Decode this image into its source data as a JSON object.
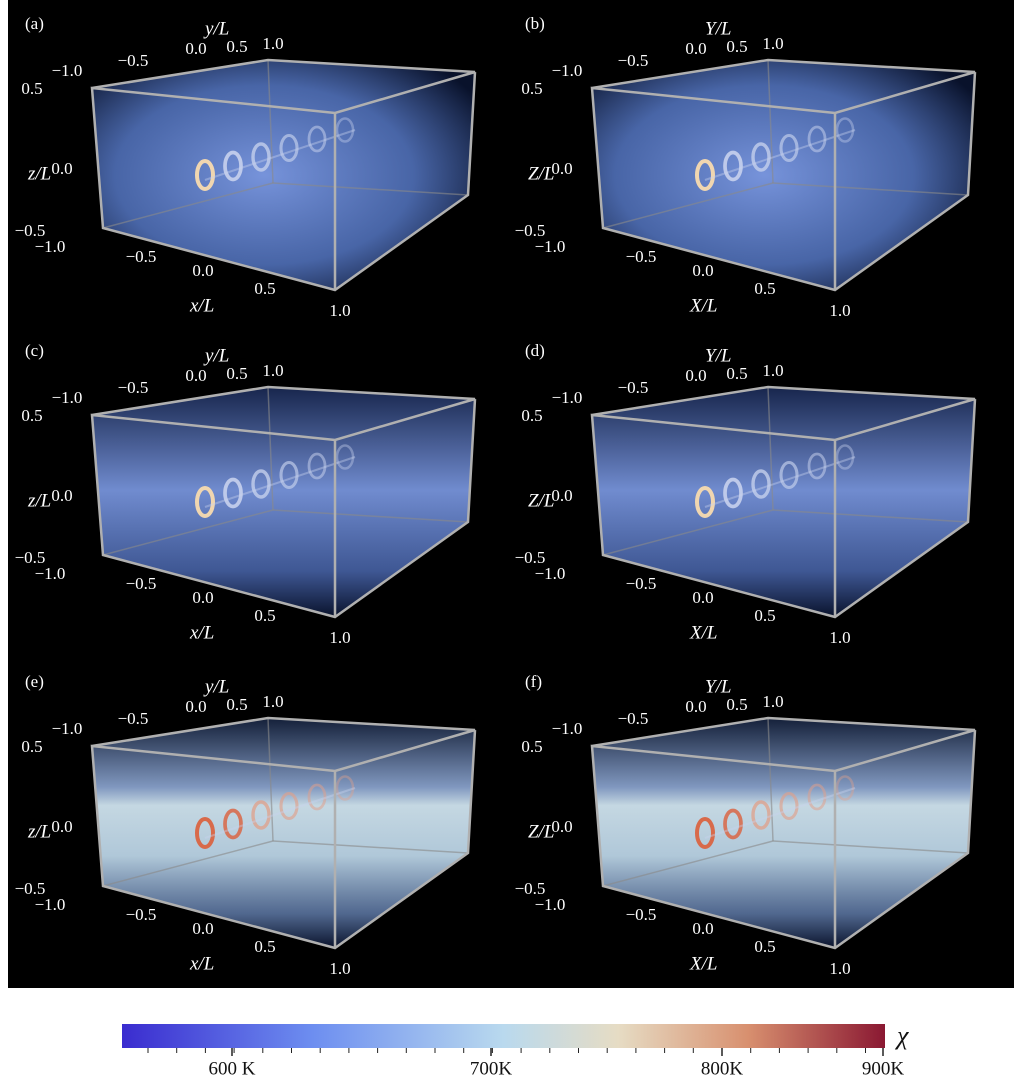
{
  "figure": {
    "panels": [
      {
        "label": "(a)",
        "x_axis_label": "x/L",
        "y_axis_label": "y/L",
        "z_axis_label": "z/L",
        "x_ticks": [
          "−1.0",
          "−0.5",
          "0.0",
          "0.5",
          "1.0"
        ],
        "y_ticks": [
          "−1.0",
          "−0.5",
          "0.0",
          "0.5",
          "1.0"
        ],
        "z_ticks": [
          "0.5",
          "0.0",
          "−0.5"
        ]
      },
      {
        "label": "(b)",
        "x_axis_label": "X/L",
        "y_axis_label": "Y/L",
        "z_axis_label": "Z/L",
        "x_ticks": [
          "−1.0",
          "−0.5",
          "0.0",
          "0.5",
          "1.0"
        ],
        "y_ticks": [
          "−1.0",
          "−0.5",
          "0.0",
          "0.5",
          "1.0"
        ],
        "z_ticks": [
          "0.5",
          "0.0",
          "−0.5"
        ]
      },
      {
        "label": "(c)",
        "x_axis_label": "x/L",
        "y_axis_label": "y/L",
        "z_axis_label": "z/L",
        "x_ticks": [
          "−1.0",
          "−0.5",
          "0.0",
          "0.5",
          "1.0"
        ],
        "y_ticks": [
          "−1.0",
          "−0.5",
          "0.0",
          "0.5",
          "1.0"
        ],
        "z_ticks": [
          "0.5",
          "0.0",
          "−0.5"
        ]
      },
      {
        "label": "(d)",
        "x_axis_label": "X/L",
        "y_axis_label": "Y/L",
        "z_axis_label": "Z/L",
        "x_ticks": [
          "−1.0",
          "−0.5",
          "0.0",
          "0.5",
          "1.0"
        ],
        "y_ticks": [
          "−1.0",
          "−0.5",
          "0.0",
          "0.5",
          "1.0"
        ],
        "z_ticks": [
          "0.5",
          "0.0",
          "−0.5"
        ]
      },
      {
        "label": "(e)",
        "x_axis_label": "x/L",
        "y_axis_label": "y/L",
        "z_axis_label": "z/L",
        "x_ticks": [
          "−1.0",
          "−0.5",
          "0.0",
          "0.5",
          "1.0"
        ],
        "y_ticks": [
          "−1.0",
          "−0.5",
          "0.0",
          "0.5",
          "1.0"
        ],
        "z_ticks": [
          "0.5",
          "0.0",
          "−0.5"
        ]
      },
      {
        "label": "(f)",
        "x_axis_label": "X/L",
        "y_axis_label": "Y/L",
        "z_axis_label": "Z/L",
        "x_ticks": [
          "−1.0",
          "−0.5",
          "0.0",
          "0.5",
          "1.0"
        ],
        "y_ticks": [
          "−1.0",
          "−0.5",
          "0.0",
          "0.5",
          "1.0"
        ],
        "z_ticks": [
          "0.5",
          "0.0",
          "−0.5"
        ]
      }
    ],
    "colorbar": {
      "label": "χ",
      "ticks": [
        "600 K",
        "700K",
        "800K",
        "900K"
      ]
    }
  }
}
